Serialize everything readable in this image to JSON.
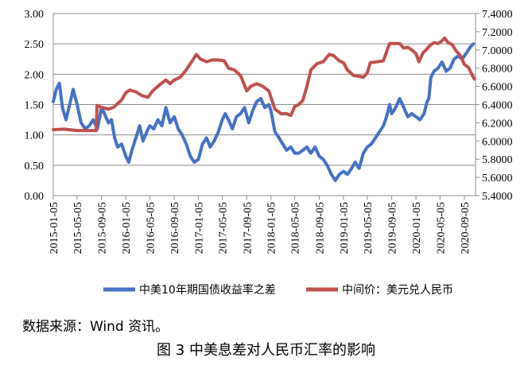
{
  "source_note": "数据来源：Wind 资讯。",
  "caption": "图 3  中美息差对人民币汇率的影响",
  "chart_data": {
    "type": "line",
    "title": "",
    "xlabel": "",
    "ylabel_left": "",
    "ylabel_right": "",
    "ylim_left": [
      0,
      3
    ],
    "yticks_left": [
      "0.00",
      "0.50",
      "1.00",
      "1.50",
      "2.00",
      "2.50",
      "3.00"
    ],
    "ylim_right": [
      5.4,
      7.4
    ],
    "yticks_right": [
      "5.4000",
      "5.6000",
      "5.8000",
      "6.0000",
      "6.2000",
      "6.4000",
      "6.6000",
      "6.8000",
      "7.0000",
      "7.2000",
      "7.4000"
    ],
    "x_range": [
      "2015-01-05",
      "2020-10-31"
    ],
    "x_tick_labels": [
      "2015-01-05",
      "2015-05-05",
      "2015-09-05",
      "2016-01-05",
      "2016-05-05",
      "2016-09-05",
      "2017-01-05",
      "2017-05-05",
      "2017-09-05",
      "2018-01-05",
      "2018-05-05",
      "2018-09-05",
      "2019-01-05",
      "2019-05-05",
      "2019-09-05",
      "2020-01-05",
      "2020-05-05",
      "2020-09-05"
    ],
    "grid": "horizontal",
    "legend_position": "bottom",
    "series": [
      {
        "name": "中美10年期国债收益率之差",
        "axis": "left",
        "color": "#4472c4",
        "points": [
          [
            "2015-01-05",
            1.55
          ],
          [
            "2015-01-20",
            1.75
          ],
          [
            "2015-02-05",
            1.85
          ],
          [
            "2015-02-20",
            1.45
          ],
          [
            "2015-03-10",
            1.25
          ],
          [
            "2015-04-01",
            1.55
          ],
          [
            "2015-04-15",
            1.75
          ],
          [
            "2015-05-05",
            1.5
          ],
          [
            "2015-05-25",
            1.2
          ],
          [
            "2015-06-15",
            1.1
          ],
          [
            "2015-07-05",
            1.15
          ],
          [
            "2015-07-25",
            1.25
          ],
          [
            "2015-08-15",
            1.1
          ],
          [
            "2015-09-05",
            1.45
          ],
          [
            "2015-09-20",
            1.35
          ],
          [
            "2015-10-10",
            1.2
          ],
          [
            "2015-10-25",
            1.25
          ],
          [
            "2015-11-10",
            0.95
          ],
          [
            "2015-11-25",
            0.8
          ],
          [
            "2015-12-15",
            0.85
          ],
          [
            "2016-01-05",
            0.65
          ],
          [
            "2016-01-20",
            0.55
          ],
          [
            "2016-02-05",
            0.75
          ],
          [
            "2016-02-25",
            0.95
          ],
          [
            "2016-03-15",
            1.15
          ],
          [
            "2016-04-01",
            0.9
          ],
          [
            "2016-04-20",
            1.05
          ],
          [
            "2016-05-05",
            1.15
          ],
          [
            "2016-05-25",
            1.1
          ],
          [
            "2016-06-15",
            1.25
          ],
          [
            "2016-07-05",
            1.15
          ],
          [
            "2016-07-25",
            1.45
          ],
          [
            "2016-08-15",
            1.2
          ],
          [
            "2016-09-05",
            1.3
          ],
          [
            "2016-09-25",
            1.1
          ],
          [
            "2016-10-15",
            1.0
          ],
          [
            "2016-11-05",
            0.85
          ],
          [
            "2016-11-25",
            0.65
          ],
          [
            "2016-12-15",
            0.55
          ],
          [
            "2017-01-05",
            0.6
          ],
          [
            "2017-01-25",
            0.85
          ],
          [
            "2017-02-15",
            0.95
          ],
          [
            "2017-03-05",
            0.8
          ],
          [
            "2017-03-25",
            0.9
          ],
          [
            "2017-04-15",
            1.05
          ],
          [
            "2017-05-05",
            1.25
          ],
          [
            "2017-05-20",
            1.35
          ],
          [
            "2017-06-05",
            1.25
          ],
          [
            "2017-06-25",
            1.1
          ],
          [
            "2017-07-15",
            1.3
          ],
          [
            "2017-08-05",
            1.35
          ],
          [
            "2017-08-25",
            1.45
          ],
          [
            "2017-09-15",
            1.2
          ],
          [
            "2017-10-05",
            1.4
          ],
          [
            "2017-10-25",
            1.55
          ],
          [
            "2017-11-15",
            1.6
          ],
          [
            "2017-12-05",
            1.45
          ],
          [
            "2017-12-25",
            1.5
          ],
          [
            "2018-01-05",
            1.4
          ],
          [
            "2018-01-25",
            1.05
          ],
          [
            "2018-02-15",
            0.95
          ],
          [
            "2018-03-05",
            0.85
          ],
          [
            "2018-03-25",
            0.75
          ],
          [
            "2018-04-15",
            0.8
          ],
          [
            "2018-05-05",
            0.7
          ],
          [
            "2018-05-25",
            0.7
          ],
          [
            "2018-06-15",
            0.75
          ],
          [
            "2018-07-05",
            0.8
          ],
          [
            "2018-07-25",
            0.7
          ],
          [
            "2018-08-15",
            0.8
          ],
          [
            "2018-09-05",
            0.65
          ],
          [
            "2018-09-25",
            0.6
          ],
          [
            "2018-10-15",
            0.5
          ],
          [
            "2018-11-05",
            0.35
          ],
          [
            "2018-11-25",
            0.25
          ],
          [
            "2018-12-15",
            0.35
          ],
          [
            "2019-01-05",
            0.4
          ],
          [
            "2019-01-25",
            0.35
          ],
          [
            "2019-02-15",
            0.45
          ],
          [
            "2019-03-05",
            0.55
          ],
          [
            "2019-03-25",
            0.45
          ],
          [
            "2019-04-15",
            0.7
          ],
          [
            "2019-05-05",
            0.8
          ],
          [
            "2019-05-25",
            0.85
          ],
          [
            "2019-06-15",
            0.95
          ],
          [
            "2019-07-05",
            1.05
          ],
          [
            "2019-07-25",
            1.15
          ],
          [
            "2019-08-10",
            1.3
          ],
          [
            "2019-08-25",
            1.5
          ],
          [
            "2019-09-05",
            1.35
          ],
          [
            "2019-09-25",
            1.45
          ],
          [
            "2019-10-15",
            1.6
          ],
          [
            "2019-11-05",
            1.45
          ],
          [
            "2019-11-25",
            1.3
          ],
          [
            "2019-12-15",
            1.35
          ],
          [
            "2020-01-05",
            1.3
          ],
          [
            "2020-01-25",
            1.25
          ],
          [
            "2020-02-15",
            1.35
          ],
          [
            "2020-03-01",
            1.55
          ],
          [
            "2020-03-10",
            1.6
          ],
          [
            "2020-03-20",
            1.95
          ],
          [
            "2020-04-05",
            2.05
          ],
          [
            "2020-04-25",
            2.1
          ],
          [
            "2020-05-15",
            2.2
          ],
          [
            "2020-06-05",
            2.05
          ],
          [
            "2020-06-25",
            2.1
          ],
          [
            "2020-07-15",
            2.25
          ],
          [
            "2020-08-05",
            2.3
          ],
          [
            "2020-08-25",
            2.25
          ],
          [
            "2020-09-15",
            2.35
          ],
          [
            "2020-10-05",
            2.45
          ],
          [
            "2020-10-20",
            2.5
          ]
        ]
      },
      {
        "name": "中间价：美元兑人民币",
        "axis": "right",
        "color": "#c0504d",
        "points": [
          [
            "2015-01-05",
            6.125
          ],
          [
            "2015-03-01",
            6.13
          ],
          [
            "2015-05-05",
            6.115
          ],
          [
            "2015-07-01",
            6.115
          ],
          [
            "2015-08-10",
            6.115
          ],
          [
            "2015-08-13",
            6.39
          ],
          [
            "2015-09-05",
            6.37
          ],
          [
            "2015-10-10",
            6.35
          ],
          [
            "2015-11-05",
            6.37
          ],
          [
            "2015-12-15",
            6.45
          ],
          [
            "2016-01-05",
            6.53
          ],
          [
            "2016-01-25",
            6.56
          ],
          [
            "2016-02-25",
            6.54
          ],
          [
            "2016-03-25",
            6.5
          ],
          [
            "2016-04-25",
            6.48
          ],
          [
            "2016-05-20",
            6.55
          ],
          [
            "2016-06-25",
            6.62
          ],
          [
            "2016-07-25",
            6.67
          ],
          [
            "2016-08-15",
            6.63
          ],
          [
            "2016-09-05",
            6.67
          ],
          [
            "2016-10-05",
            6.7
          ],
          [
            "2016-11-01",
            6.77
          ],
          [
            "2016-12-05",
            6.88
          ],
          [
            "2016-12-25",
            6.95
          ],
          [
            "2017-01-15",
            6.9
          ],
          [
            "2017-02-15",
            6.87
          ],
          [
            "2017-03-15",
            6.89
          ],
          [
            "2017-04-15",
            6.89
          ],
          [
            "2017-05-15",
            6.88
          ],
          [
            "2017-06-05",
            6.8
          ],
          [
            "2017-07-05",
            6.78
          ],
          [
            "2017-08-05",
            6.72
          ],
          [
            "2017-09-05",
            6.55
          ],
          [
            "2017-09-25",
            6.6
          ],
          [
            "2017-10-25",
            6.63
          ],
          [
            "2017-11-25",
            6.6
          ],
          [
            "2017-12-25",
            6.55
          ],
          [
            "2018-01-25",
            6.35
          ],
          [
            "2018-02-25",
            6.3
          ],
          [
            "2018-03-25",
            6.3
          ],
          [
            "2018-04-15",
            6.28
          ],
          [
            "2018-05-05",
            6.38
          ],
          [
            "2018-05-25",
            6.4
          ],
          [
            "2018-06-15",
            6.45
          ],
          [
            "2018-07-05",
            6.6
          ],
          [
            "2018-07-25",
            6.78
          ],
          [
            "2018-08-25",
            6.85
          ],
          [
            "2018-09-25",
            6.87
          ],
          [
            "2018-10-25",
            6.95
          ],
          [
            "2018-11-15",
            6.94
          ],
          [
            "2018-12-15",
            6.88
          ],
          [
            "2019-01-05",
            6.86
          ],
          [
            "2019-01-25",
            6.78
          ],
          [
            "2019-02-25",
            6.72
          ],
          [
            "2019-03-25",
            6.71
          ],
          [
            "2019-04-15",
            6.7
          ],
          [
            "2019-05-05",
            6.75
          ],
          [
            "2019-05-20",
            6.86
          ],
          [
            "2019-06-25",
            6.87
          ],
          [
            "2019-07-25",
            6.88
          ],
          [
            "2019-08-10",
            6.98
          ],
          [
            "2019-08-25",
            7.07
          ],
          [
            "2019-09-15",
            7.07
          ],
          [
            "2019-10-15",
            7.07
          ],
          [
            "2019-11-05",
            7.02
          ],
          [
            "2019-11-25",
            7.03
          ],
          [
            "2019-12-15",
            7.0
          ],
          [
            "2020-01-05",
            6.96
          ],
          [
            "2020-01-20",
            6.87
          ],
          [
            "2020-02-10",
            6.97
          ],
          [
            "2020-02-25",
            7.0
          ],
          [
            "2020-03-15",
            7.05
          ],
          [
            "2020-04-05",
            7.08
          ],
          [
            "2020-04-25",
            7.07
          ],
          [
            "2020-05-15",
            7.1
          ],
          [
            "2020-05-28",
            7.13
          ],
          [
            "2020-06-15",
            7.08
          ],
          [
            "2020-07-05",
            7.06
          ],
          [
            "2020-07-25",
            6.99
          ],
          [
            "2020-08-15",
            6.94
          ],
          [
            "2020-09-05",
            6.84
          ],
          [
            "2020-09-25",
            6.81
          ],
          [
            "2020-10-15",
            6.72
          ],
          [
            "2020-10-25",
            6.68
          ]
        ]
      }
    ]
  }
}
